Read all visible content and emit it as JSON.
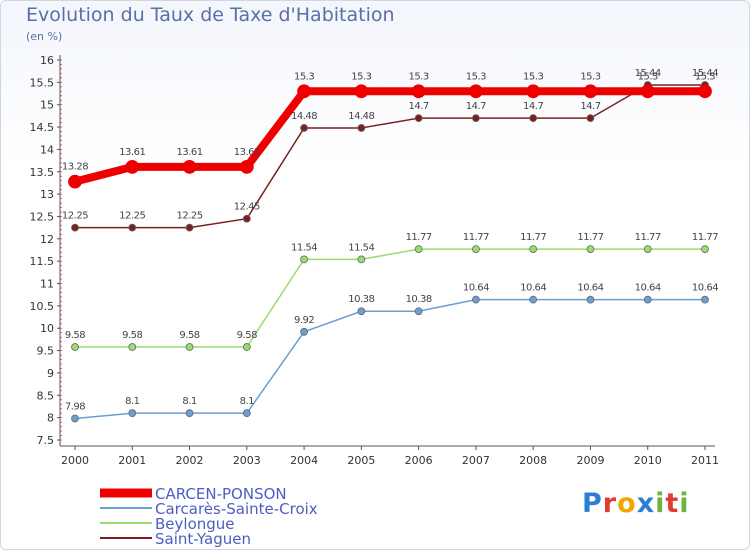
{
  "title": "Evolution du Taux de Taxe d'Habitation",
  "subtitle": "(en %)",
  "brand": {
    "letters": [
      "P",
      "r",
      "o",
      "x",
      "i",
      "t",
      "i"
    ],
    "colors": [
      "#2a7fd4",
      "#e03c31",
      "#f0a500",
      "#2a7fd4",
      "#6cb33f",
      "#e03c31",
      "#6cb33f"
    ]
  },
  "chart_data": {
    "type": "line",
    "title": "Evolution du Taux de Taxe d'Habitation",
    "ylabel": "(en %)",
    "xlabel": "",
    "ylim": [
      7.5,
      16
    ],
    "yticks": [
      "7.5",
      "8",
      "8.5",
      "9",
      "9.5",
      "10",
      "10.5",
      "11",
      "11.5",
      "12",
      "12.5",
      "13",
      "13.5",
      "14",
      "14.5",
      "15",
      "15.5",
      "16"
    ],
    "categories": [
      "2000",
      "2001",
      "2002",
      "2003",
      "2004",
      "2005",
      "2006",
      "2007",
      "2008",
      "2009",
      "2010",
      "2011"
    ],
    "series": [
      {
        "name": "Saint-Yaguen",
        "color": "#7a2020",
        "values": [
          12.25,
          12.25,
          12.25,
          12.45,
          14.48,
          14.48,
          14.7,
          14.7,
          14.7,
          14.7,
          15.44,
          15.44
        ],
        "labels": [
          "12.25",
          "12.25",
          "12.25",
          "12.45",
          "14.48",
          "14.48",
          "14.7",
          "14.7",
          "14.7",
          "14.7",
          "15.44",
          "15.44"
        ]
      },
      {
        "name": "Beylongue",
        "color": "#98dc6e",
        "values": [
          9.58,
          9.58,
          9.58,
          9.58,
          11.54,
          11.54,
          11.77,
          11.77,
          11.77,
          11.77,
          11.77,
          11.77
        ],
        "labels": [
          "9.58",
          "9.58",
          "9.58",
          "9.58",
          "11.54",
          "11.54",
          "11.77",
          "11.77",
          "11.77",
          "11.77",
          "11.77",
          "11.77"
        ]
      },
      {
        "name": "Carcarès-Sainte-Croix",
        "color": "#6a9fd2",
        "values": [
          7.98,
          8.1,
          8.1,
          8.1,
          9.92,
          10.38,
          10.38,
          10.64,
          10.64,
          10.64,
          10.64,
          10.64
        ],
        "labels": [
          "7.98",
          "8.1",
          "8.1",
          "8.1",
          "9.92",
          "10.38",
          "10.38",
          "10.64",
          "10.64",
          "10.64",
          "10.64",
          "10.64"
        ]
      },
      {
        "name": "CARCEN-PONSON",
        "color": "#ee0000",
        "values": [
          13.28,
          13.61,
          13.61,
          13.61,
          15.3,
          15.3,
          15.3,
          15.3,
          15.3,
          15.3,
          15.3,
          15.3
        ],
        "labels": [
          "13.28",
          "13.61",
          "13.61",
          "13.61",
          "15.3",
          "15.3",
          "15.3",
          "15.3",
          "15.3",
          "15.3",
          "15.3",
          "15.3"
        ]
      }
    ],
    "legend_order": [
      "CARCEN-PONSON",
      "Carcarès-Sainte-Croix",
      "Beylongue",
      "Saint-Yaguen"
    ],
    "legend_position": "bottom-left",
    "grid": false
  }
}
